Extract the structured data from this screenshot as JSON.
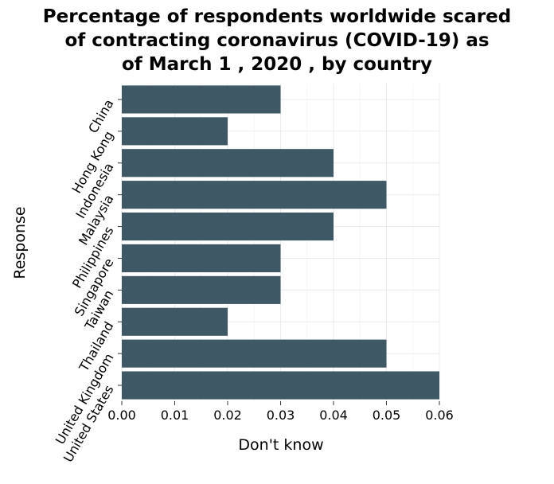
{
  "chart_data": {
    "type": "bar",
    "orientation": "horizontal",
    "title_lines": [
      "Percentage of respondents worldwide scared",
      "of contracting coronavirus (COVID-19) as",
      "of March 1 , 2020 , by country"
    ],
    "xlabel": "Don't know",
    "ylabel": "Response",
    "categories": [
      "China",
      "Hong Kong",
      "Indonesia",
      "Malaysia",
      "Philippines",
      "Singapore",
      "Taiwan",
      "Thailand",
      "United Kingdom",
      "United States"
    ],
    "values": [
      0.03,
      0.02,
      0.04,
      0.05,
      0.04,
      0.03,
      0.03,
      0.02,
      0.05,
      0.06
    ],
    "xlim": [
      0,
      0.06
    ],
    "xticks": [
      0.0,
      0.01,
      0.02,
      0.03,
      0.04,
      0.05,
      0.06
    ],
    "xtick_labels": [
      "0.00",
      "0.01",
      "0.02",
      "0.03",
      "0.04",
      "0.05",
      "0.06"
    ],
    "grid": true,
    "bar_color": "#3f5866",
    "plot_background": "#ffffff",
    "grid_color": "#ebebeb"
  }
}
